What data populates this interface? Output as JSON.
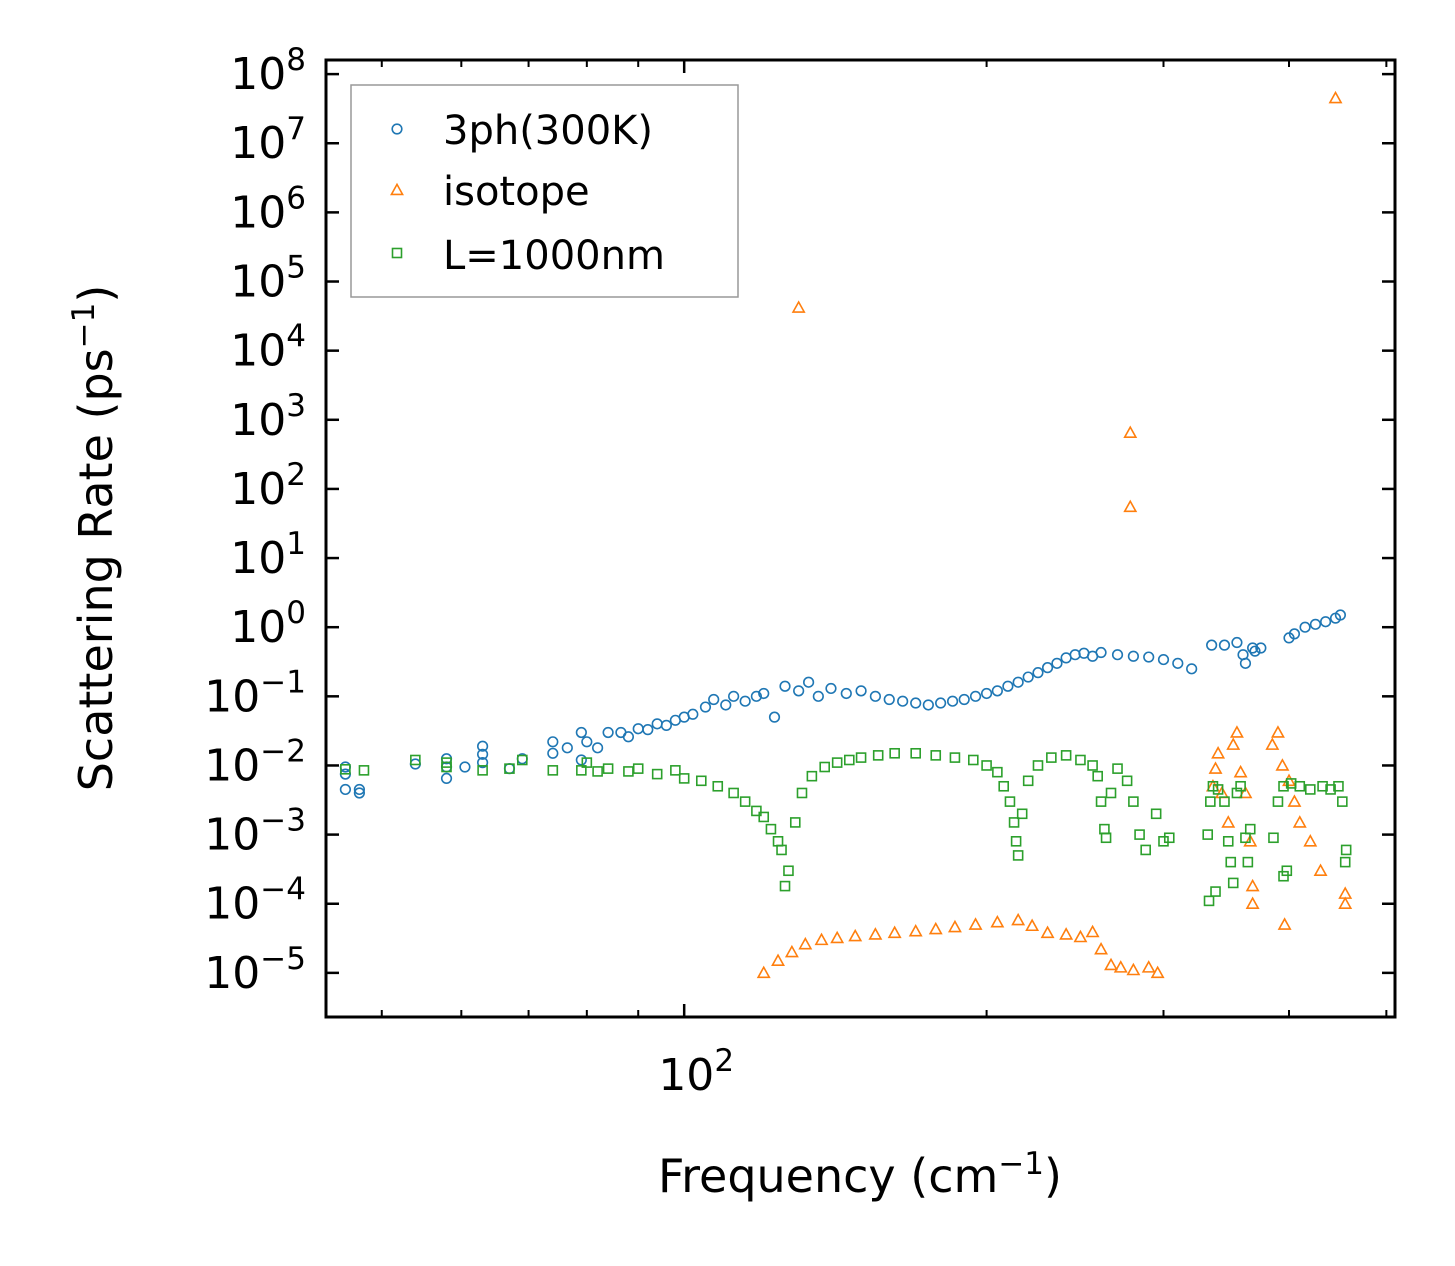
{
  "chart_data": {
    "type": "scatter",
    "xscale": "log",
    "yscale": "log",
    "xlim": [
      44,
      510
    ],
    "ylim": [
      2.3e-06,
      160000000.0
    ],
    "xlabel": {
      "base": "Frequency (cm",
      "sup": "−1",
      "close": ")"
    },
    "ylabel": {
      "base": "Scattering Rate (ps",
      "sup": "−1",
      "close": ")"
    },
    "x_tick_labels": [
      {
        "value": 100,
        "base": "10",
        "exp": "2"
      }
    ],
    "y_tick_labels": [
      {
        "value": 100000000.0,
        "base": "10",
        "exp": "8"
      },
      {
        "value": 10000000.0,
        "base": "10",
        "exp": "7"
      },
      {
        "value": 1000000.0,
        "base": "10",
        "exp": "6"
      },
      {
        "value": 100000.0,
        "base": "10",
        "exp": "5"
      },
      {
        "value": 10000.0,
        "base": "10",
        "exp": "4"
      },
      {
        "value": 1000.0,
        "base": "10",
        "exp": "3"
      },
      {
        "value": 100.0,
        "base": "10",
        "exp": "2"
      },
      {
        "value": 10.0,
        "base": "10",
        "exp": "1"
      },
      {
        "value": 1,
        "base": "10",
        "exp": "0"
      },
      {
        "value": 0.1,
        "base": "10",
        "exp": "−1"
      },
      {
        "value": 0.01,
        "base": "10",
        "exp": "−2"
      },
      {
        "value": 0.001,
        "base": "10",
        "exp": "−3"
      },
      {
        "value": 0.0001,
        "base": "10",
        "exp": "−4"
      },
      {
        "value": 1e-05,
        "base": "10",
        "exp": "−5"
      }
    ],
    "legend": {
      "location": "upper-left"
    },
    "series": [
      {
        "name": "3ph(300K)",
        "marker": "circle",
        "color": "#1f77b4",
        "points": [
          [
            46,
            0.0095
          ],
          [
            46,
            0.0075
          ],
          [
            46,
            0.0045
          ],
          [
            47.5,
            0.0045
          ],
          [
            47.5,
            0.004
          ],
          [
            54,
            0.0105
          ],
          [
            58,
            0.0065
          ],
          [
            58,
            0.0095
          ],
          [
            58,
            0.0125
          ],
          [
            60.5,
            0.0095
          ],
          [
            63,
            0.011
          ],
          [
            63,
            0.0145
          ],
          [
            63,
            0.019
          ],
          [
            67,
            0.009
          ],
          [
            69,
            0.0125
          ],
          [
            74,
            0.022
          ],
          [
            74,
            0.015
          ],
          [
            76.5,
            0.018
          ],
          [
            79,
            0.012
          ],
          [
            79,
            0.03
          ],
          [
            80,
            0.022
          ],
          [
            82,
            0.018
          ],
          [
            84,
            0.03
          ],
          [
            86.5,
            0.03
          ],
          [
            88,
            0.026
          ],
          [
            90,
            0.034
          ],
          [
            92,
            0.033
          ],
          [
            94,
            0.04
          ],
          [
            96,
            0.038
          ],
          [
            98,
            0.045
          ],
          [
            100,
            0.05
          ],
          [
            102,
            0.055
          ],
          [
            105,
            0.07
          ],
          [
            107,
            0.09
          ],
          [
            110,
            0.075
          ],
          [
            112,
            0.1
          ],
          [
            115,
            0.085
          ],
          [
            118,
            0.1
          ],
          [
            120,
            0.11
          ],
          [
            123,
            0.05
          ],
          [
            126,
            0.14
          ],
          [
            130,
            0.12
          ],
          [
            133,
            0.16
          ],
          [
            136,
            0.1
          ],
          [
            140,
            0.13
          ],
          [
            145,
            0.11
          ],
          [
            150,
            0.12
          ],
          [
            155,
            0.1
          ],
          [
            160,
            0.09
          ],
          [
            165,
            0.085
          ],
          [
            170,
            0.08
          ],
          [
            175,
            0.075
          ],
          [
            180,
            0.08
          ],
          [
            185,
            0.085
          ],
          [
            190,
            0.09
          ],
          [
            195,
            0.1
          ],
          [
            200,
            0.11
          ],
          [
            205,
            0.12
          ],
          [
            210,
            0.14
          ],
          [
            215,
            0.16
          ],
          [
            220,
            0.19
          ],
          [
            225,
            0.22
          ],
          [
            230,
            0.26
          ],
          [
            235,
            0.3
          ],
          [
            240,
            0.36
          ],
          [
            245,
            0.4
          ],
          [
            250,
            0.42
          ],
          [
            255,
            0.38
          ],
          [
            260,
            0.43
          ],
          [
            270,
            0.4
          ],
          [
            280,
            0.38
          ],
          [
            290,
            0.37
          ],
          [
            300,
            0.34
          ],
          [
            310,
            0.3
          ],
          [
            320,
            0.25
          ],
          [
            335,
            0.55
          ],
          [
            345,
            0.55
          ],
          [
            355,
            0.6
          ],
          [
            360,
            0.4
          ],
          [
            362,
            0.3
          ],
          [
            368,
            0.5
          ],
          [
            370,
            0.45
          ],
          [
            375,
            0.5
          ],
          [
            400,
            0.7
          ],
          [
            405,
            0.8
          ],
          [
            415,
            1.0
          ],
          [
            425,
            1.1
          ],
          [
            435,
            1.2
          ],
          [
            445,
            1.35
          ],
          [
            450,
            1.5
          ]
        ]
      },
      {
        "name": "isotope",
        "marker": "triangle",
        "color": "#ff7f0e",
        "points": [
          [
            120,
            1e-05
          ],
          [
            124,
            1.5e-05
          ],
          [
            128,
            2e-05
          ],
          [
            132,
            2.6e-05
          ],
          [
            137,
            3e-05
          ],
          [
            142,
            3.2e-05
          ],
          [
            148,
            3.4e-05
          ],
          [
            155,
            3.6e-05
          ],
          [
            162,
            3.8e-05
          ],
          [
            170,
            4e-05
          ],
          [
            178,
            4.3e-05
          ],
          [
            186,
            4.6e-05
          ],
          [
            195,
            5e-05
          ],
          [
            205,
            5.4e-05
          ],
          [
            215,
            5.8e-05
          ],
          [
            222,
            4.8e-05
          ],
          [
            230,
            3.8e-05
          ],
          [
            240,
            3.6e-05
          ],
          [
            248,
            3.3e-05
          ],
          [
            255,
            3.9e-05
          ],
          [
            260,
            2.2e-05
          ],
          [
            266,
            1.3e-05
          ],
          [
            272,
            1.2e-05
          ],
          [
            280,
            1.1e-05
          ],
          [
            290,
            1.2e-05
          ],
          [
            296,
            1e-05
          ],
          [
            130,
            42000
          ],
          [
            278,
            650
          ],
          [
            278,
            55
          ],
          [
            445,
            45000000.0
          ],
          [
            336,
            0.005
          ],
          [
            338,
            0.009
          ],
          [
            340,
            0.015
          ],
          [
            343,
            0.004
          ],
          [
            348,
            0.0015
          ],
          [
            352,
            0.02
          ],
          [
            355,
            0.03
          ],
          [
            358,
            0.008
          ],
          [
            362,
            0.004
          ],
          [
            366,
            0.0008
          ],
          [
            368,
            0.00018
          ],
          [
            368,
            0.0001
          ],
          [
            385,
            0.02
          ],
          [
            390,
            0.03
          ],
          [
            394,
            0.01
          ],
          [
            400,
            0.006
          ],
          [
            405,
            0.003
          ],
          [
            410,
            0.0015
          ],
          [
            420,
            0.0008
          ],
          [
            430,
            0.0003
          ],
          [
            396,
            5e-05
          ],
          [
            455,
            0.00014
          ],
          [
            455,
            0.0001
          ]
        ]
      },
      {
        "name": "L=1000nm",
        "marker": "square",
        "color": "#2ca02c",
        "points": [
          [
            46,
            0.0088
          ],
          [
            48,
            0.0085
          ],
          [
            54,
            0.012
          ],
          [
            58,
            0.011
          ],
          [
            58,
            0.0095
          ],
          [
            63,
            0.0085
          ],
          [
            67,
            0.009
          ],
          [
            69,
            0.012
          ],
          [
            74,
            0.0085
          ],
          [
            79,
            0.0085
          ],
          [
            80,
            0.011
          ],
          [
            82,
            0.0082
          ],
          [
            84,
            0.009
          ],
          [
            88,
            0.0082
          ],
          [
            90,
            0.009
          ],
          [
            94,
            0.0075
          ],
          [
            98,
            0.0085
          ],
          [
            100,
            0.0065
          ],
          [
            104,
            0.006
          ],
          [
            108,
            0.005
          ],
          [
            112,
            0.004
          ],
          [
            115,
            0.003
          ],
          [
            118,
            0.0022
          ],
          [
            120,
            0.0018
          ],
          [
            122,
            0.0012
          ],
          [
            124,
            0.0008
          ],
          [
            125,
            0.0006
          ],
          [
            126,
            0.00018
          ],
          [
            127,
            0.0003
          ],
          [
            129,
            0.0015
          ],
          [
            131,
            0.004
          ],
          [
            134,
            0.007
          ],
          [
            138,
            0.0095
          ],
          [
            142,
            0.011
          ],
          [
            146,
            0.012
          ],
          [
            150,
            0.013
          ],
          [
            156,
            0.014
          ],
          [
            162,
            0.015
          ],
          [
            170,
            0.015
          ],
          [
            178,
            0.014
          ],
          [
            186,
            0.013
          ],
          [
            194,
            0.012
          ],
          [
            200,
            0.01
          ],
          [
            205,
            0.008
          ],
          [
            208,
            0.005
          ],
          [
            211,
            0.003
          ],
          [
            213,
            0.0015
          ],
          [
            214,
            0.0008
          ],
          [
            215,
            0.0005
          ],
          [
            217,
            0.002
          ],
          [
            220,
            0.006
          ],
          [
            225,
            0.01
          ],
          [
            232,
            0.013
          ],
          [
            240,
            0.014
          ],
          [
            248,
            0.012
          ],
          [
            255,
            0.01
          ],
          [
            258,
            0.007
          ],
          [
            260,
            0.003
          ],
          [
            262,
            0.0012
          ],
          [
            263,
            0.0009
          ],
          [
            266,
            0.004
          ],
          [
            270,
            0.009
          ],
          [
            276,
            0.006
          ],
          [
            280,
            0.003
          ],
          [
            284,
            0.001
          ],
          [
            288,
            0.0006
          ],
          [
            295,
            0.002
          ],
          [
            300,
            0.0008
          ],
          [
            304,
            0.0009
          ],
          [
            332,
            0.001
          ],
          [
            334,
            0.003
          ],
          [
            336,
            0.005
          ],
          [
            340,
            0.0045
          ],
          [
            345,
            0.003
          ],
          [
            348,
            0.0008
          ],
          [
            350,
            0.0004
          ],
          [
            352,
            0.0002
          ],
          [
            355,
            0.004
          ],
          [
            358,
            0.005
          ],
          [
            362,
            0.0009
          ],
          [
            364,
            0.0004
          ],
          [
            366,
            0.0012
          ],
          [
            338,
            0.00015
          ],
          [
            386,
            0.0009
          ],
          [
            390,
            0.003
          ],
          [
            395,
            0.005
          ],
          [
            402,
            0.0055
          ],
          [
            410,
            0.005
          ],
          [
            420,
            0.0045
          ],
          [
            432,
            0.005
          ],
          [
            440,
            0.0045
          ],
          [
            448,
            0.005
          ],
          [
            452,
            0.003
          ],
          [
            455,
            0.0004
          ],
          [
            456,
            0.0006
          ],
          [
            333,
            0.00011
          ],
          [
            395,
            0.00025
          ],
          [
            398,
            0.0003
          ]
        ]
      }
    ]
  }
}
